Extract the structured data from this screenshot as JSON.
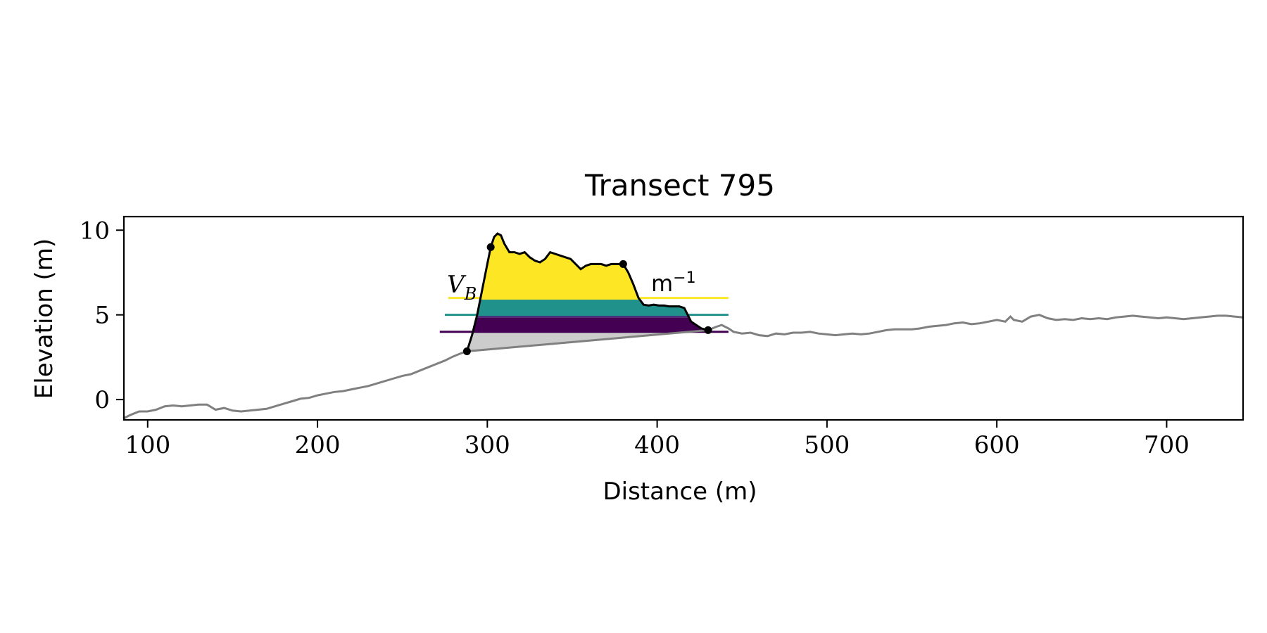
{
  "chart_data": {
    "type": "area",
    "title": "Transect 795",
    "xlabel": "Distance (m)",
    "ylabel": "Elevation (m)",
    "xlim": [
      86,
      745
    ],
    "ylim": [
      -1.2,
      10.8
    ],
    "xticks": [
      100,
      200,
      300,
      400,
      500,
      600,
      700
    ],
    "yticks": [
      0,
      5,
      10
    ],
    "grid": false,
    "legend": null,
    "annotations": {
      "volume_label": "V",
      "volume_subscript": "B",
      "unit_label": "m",
      "unit_exponent": "−1"
    },
    "colors": {
      "ground_profile": "#808080",
      "dune_profile": "#000000",
      "fill_lower": "#cccccc",
      "band_1": "#440154",
      "band_2": "#472d7b",
      "band_3": "#21918c",
      "band_4": "#fde725"
    },
    "level_lines": [
      {
        "y": 4.0,
        "x": [
          272,
          442
        ],
        "color": "#440154"
      },
      {
        "y": 5.0,
        "x": [
          275,
          442
        ],
        "color": "#21918c"
      },
      {
        "y": 6.0,
        "x": [
          277,
          442
        ],
        "color": "#fde725"
      }
    ],
    "bands": [
      {
        "ymin": 4.0,
        "ymax": 4.85,
        "color": "#440154"
      },
      {
        "ymin": 4.85,
        "ymax": 5.0,
        "color": "#472d7b"
      },
      {
        "ymin": 5.0,
        "ymax": 5.9,
        "color": "#21918c"
      },
      {
        "ymin": 5.9,
        "ymax": 20,
        "color": "#fde725"
      }
    ],
    "key_points": [
      {
        "x": 288,
        "y": 2.85
      },
      {
        "x": 302,
        "y": 9.0
      },
      {
        "x": 380,
        "y": 8.0
      },
      {
        "x": 430,
        "y": 4.1
      }
    ],
    "ground_series": {
      "name": "",
      "x": [
        86,
        90,
        95,
        100,
        105,
        110,
        115,
        120,
        125,
        130,
        135,
        140,
        145,
        150,
        155,
        160,
        165,
        170,
        175,
        180,
        185,
        190,
        195,
        200,
        205,
        210,
        215,
        220,
        225,
        230,
        235,
        240,
        245,
        250,
        255,
        260,
        265,
        270,
        275,
        280,
        285,
        288,
        430,
        435,
        438,
        442,
        445,
        450,
        455,
        460,
        465,
        470,
        475,
        480,
        485,
        490,
        495,
        500,
        505,
        510,
        515,
        520,
        525,
        530,
        535,
        540,
        545,
        550,
        555,
        560,
        565,
        570,
        575,
        580,
        585,
        590,
        595,
        600,
        605,
        608,
        610,
        615,
        620,
        625,
        630,
        635,
        640,
        645,
        650,
        655,
        660,
        665,
        670,
        675,
        680,
        685,
        690,
        695,
        700,
        705,
        710,
        715,
        720,
        725,
        730,
        735,
        740,
        745
      ],
      "y": [
        -1.1,
        -0.9,
        -0.7,
        -0.7,
        -0.6,
        -0.4,
        -0.35,
        -0.4,
        -0.35,
        -0.3,
        -0.3,
        -0.6,
        -0.5,
        -0.65,
        -0.7,
        -0.65,
        -0.6,
        -0.55,
        -0.4,
        -0.25,
        -0.1,
        0.05,
        0.1,
        0.25,
        0.35,
        0.45,
        0.5,
        0.6,
        0.7,
        0.8,
        0.95,
        1.1,
        1.25,
        1.4,
        1.5,
        1.7,
        1.9,
        2.1,
        2.3,
        2.55,
        2.75,
        2.85,
        4.1,
        4.3,
        4.4,
        4.2,
        4.0,
        3.9,
        3.95,
        3.8,
        3.75,
        3.9,
        3.85,
        3.95,
        3.95,
        4.0,
        3.9,
        3.85,
        3.8,
        3.85,
        3.9,
        3.85,
        3.9,
        4.0,
        4.1,
        4.15,
        4.15,
        4.15,
        4.2,
        4.3,
        4.35,
        4.4,
        4.5,
        4.55,
        4.45,
        4.5,
        4.6,
        4.7,
        4.6,
        4.9,
        4.7,
        4.6,
        4.9,
        5.0,
        4.8,
        4.7,
        4.75,
        4.7,
        4.8,
        4.75,
        4.8,
        4.75,
        4.85,
        4.9,
        4.95,
        4.9,
        4.85,
        4.8,
        4.85,
        4.8,
        4.75,
        4.8,
        4.85,
        4.9,
        4.95,
        4.95,
        4.9,
        4.85
      ]
    },
    "dune_series": {
      "name": "",
      "x": [
        288,
        291,
        294,
        297,
        300,
        302,
        304,
        306,
        308,
        310,
        313,
        316,
        319,
        322,
        325,
        328,
        331,
        334,
        337,
        340,
        343,
        346,
        349,
        352,
        355,
        358,
        361,
        364,
        367,
        370,
        373,
        376,
        379,
        380,
        383,
        386,
        389,
        392,
        395,
        398,
        401,
        404,
        407,
        410,
        413,
        416,
        418,
        420,
        423,
        426,
        430
      ],
      "y": [
        2.85,
        3.8,
        5.0,
        6.5,
        8.0,
        9.0,
        9.6,
        9.8,
        9.7,
        9.2,
        8.7,
        8.7,
        8.6,
        8.7,
        8.4,
        8.2,
        8.1,
        8.3,
        8.7,
        8.6,
        8.5,
        8.4,
        8.3,
        8.0,
        7.7,
        7.9,
        8.0,
        8.0,
        8.0,
        7.9,
        8.0,
        8.0,
        8.0,
        8.0,
        7.5,
        6.8,
        6.0,
        5.6,
        5.55,
        5.6,
        5.55,
        5.55,
        5.5,
        5.5,
        5.5,
        5.4,
        5.0,
        4.6,
        4.4,
        4.2,
        4.1
      ]
    }
  }
}
